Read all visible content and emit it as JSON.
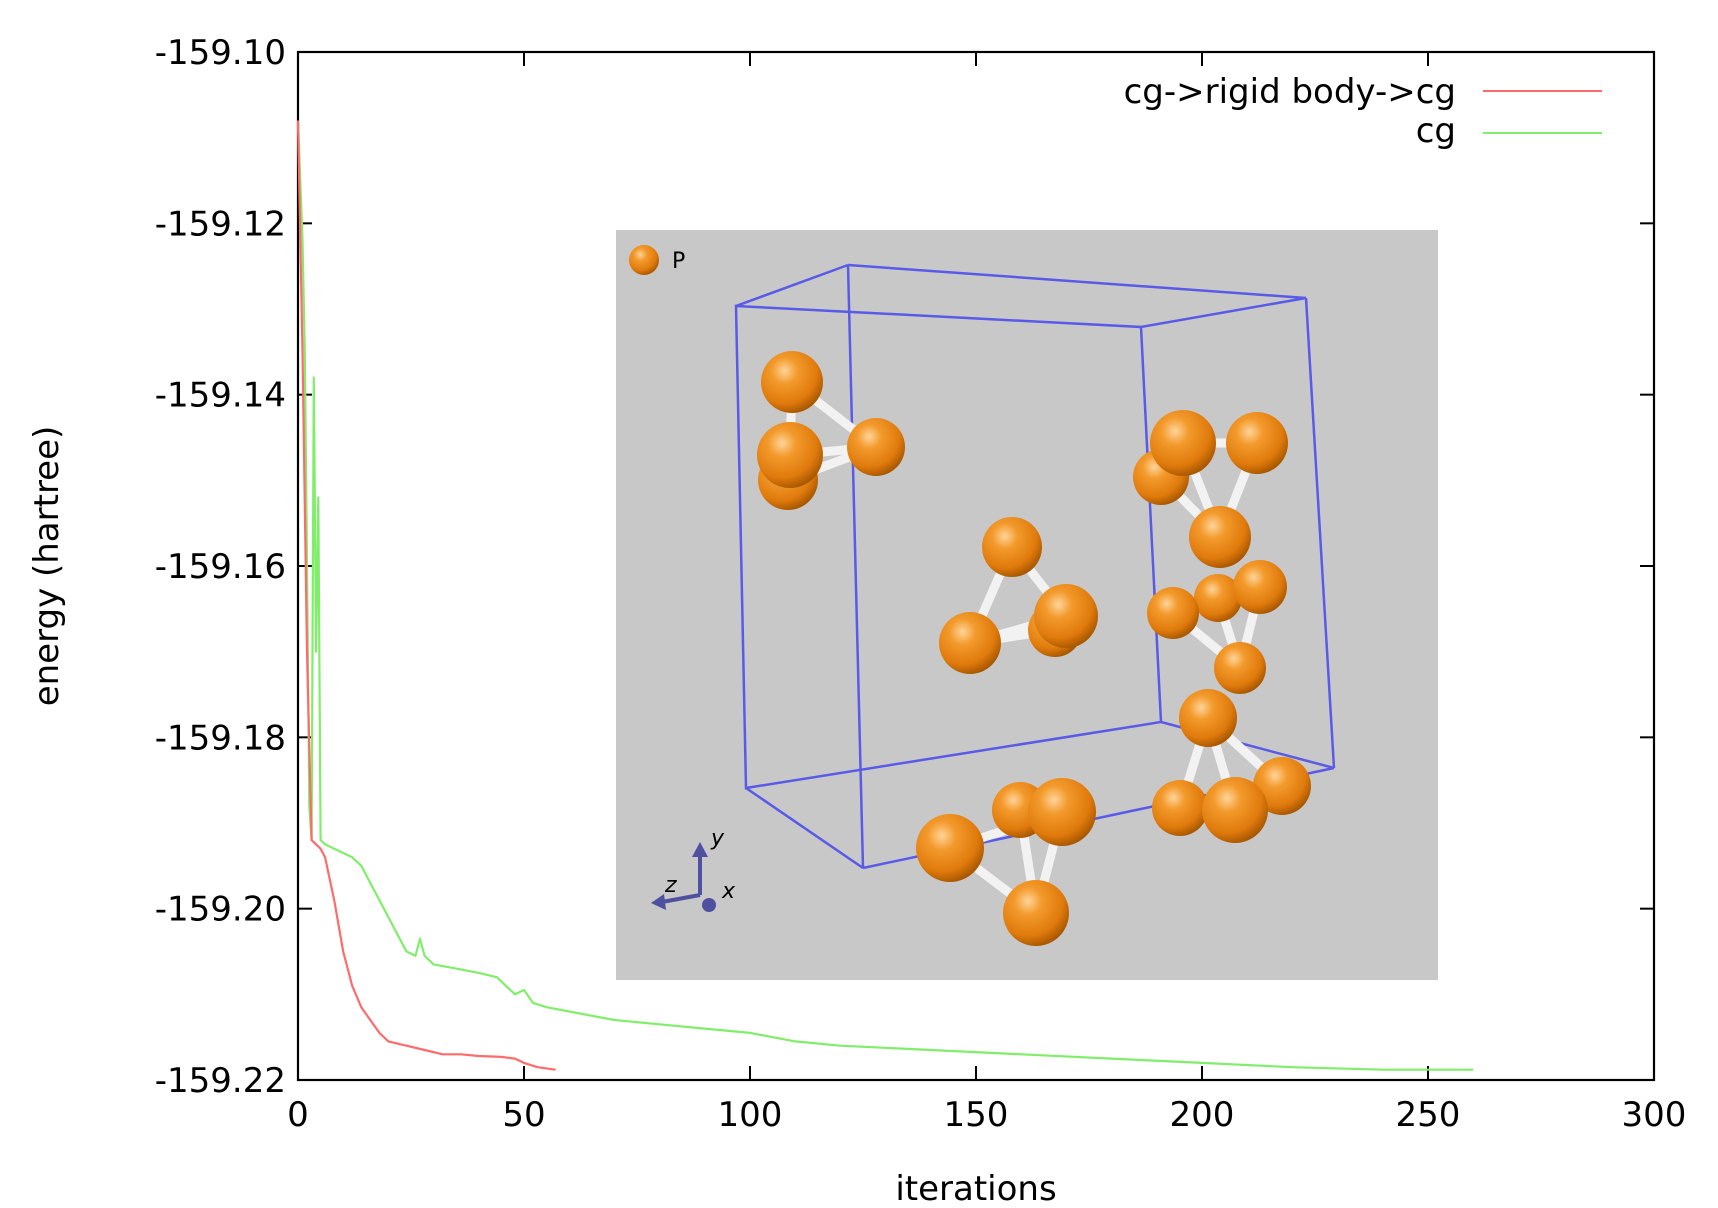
{
  "chart_data": {
    "type": "line",
    "xlabel": "iterations",
    "ylabel": "energy (hartree)",
    "xlim": [
      0,
      300
    ],
    "ylim": [
      -159.22,
      -159.1
    ],
    "x_ticks": [
      "0",
      "50",
      "100",
      "150",
      "200",
      "250",
      "300"
    ],
    "y_ticks": [
      "-159.10",
      "-159.12",
      "-159.14",
      "-159.16",
      "-159.18",
      "-159.20",
      "-159.22"
    ],
    "grid": false,
    "legend_position": "top-right",
    "series": [
      {
        "name": "cg->rigid body->cg",
        "color": "#ff6b6b",
        "x": [
          0,
          1,
          2,
          3,
          4,
          5,
          6,
          8,
          10,
          12,
          14,
          16,
          18,
          20,
          24,
          28,
          32,
          36,
          40,
          45,
          48,
          50,
          53,
          57
        ],
        "y": [
          -159.108,
          -159.135,
          -159.17,
          -159.192,
          -159.1925,
          -159.193,
          -159.194,
          -159.199,
          -159.205,
          -159.209,
          -159.2115,
          -159.213,
          -159.2145,
          -159.2155,
          -159.216,
          -159.2165,
          -159.217,
          -159.217,
          -159.2172,
          -159.2173,
          -159.2175,
          -159.218,
          -159.2185,
          -159.2188
        ]
      },
      {
        "name": "cg",
        "color": "#80ee6a",
        "x": [
          0,
          1,
          1.5,
          2,
          2.5,
          3,
          3.5,
          4,
          4.5,
          5,
          6,
          8,
          10,
          12,
          14,
          16,
          18,
          20,
          22,
          24,
          26,
          27,
          28,
          29,
          30,
          35,
          40,
          44,
          46,
          48,
          50,
          52,
          55,
          60,
          70,
          80,
          90,
          100,
          110,
          120,
          140,
          160,
          180,
          200,
          220,
          240,
          250,
          260
        ],
        "y": [
          -159.108,
          -159.122,
          -159.135,
          -159.16,
          -159.188,
          -159.192,
          -159.138,
          -159.17,
          -159.152,
          -159.192,
          -159.1925,
          -159.193,
          -159.1935,
          -159.194,
          -159.195,
          -159.197,
          -159.199,
          -159.201,
          -159.203,
          -159.205,
          -159.2055,
          -159.2035,
          -159.2055,
          -159.206,
          -159.2065,
          -159.207,
          -159.2075,
          -159.208,
          -159.209,
          -159.21,
          -159.2095,
          -159.211,
          -159.2115,
          -159.212,
          -159.213,
          -159.2135,
          -159.214,
          -159.2145,
          -159.2155,
          -159.216,
          -159.2165,
          -159.217,
          -159.2175,
          -159.218,
          -159.2185,
          -159.2188,
          -159.2188,
          -159.2188
        ]
      }
    ],
    "inset": {
      "legend_label": "P",
      "axis_labels": [
        "y",
        "z",
        "x"
      ],
      "atom_color": "#f08a1a",
      "cell_color": "#5a5ae8",
      "background": "#c8c8c8"
    }
  }
}
